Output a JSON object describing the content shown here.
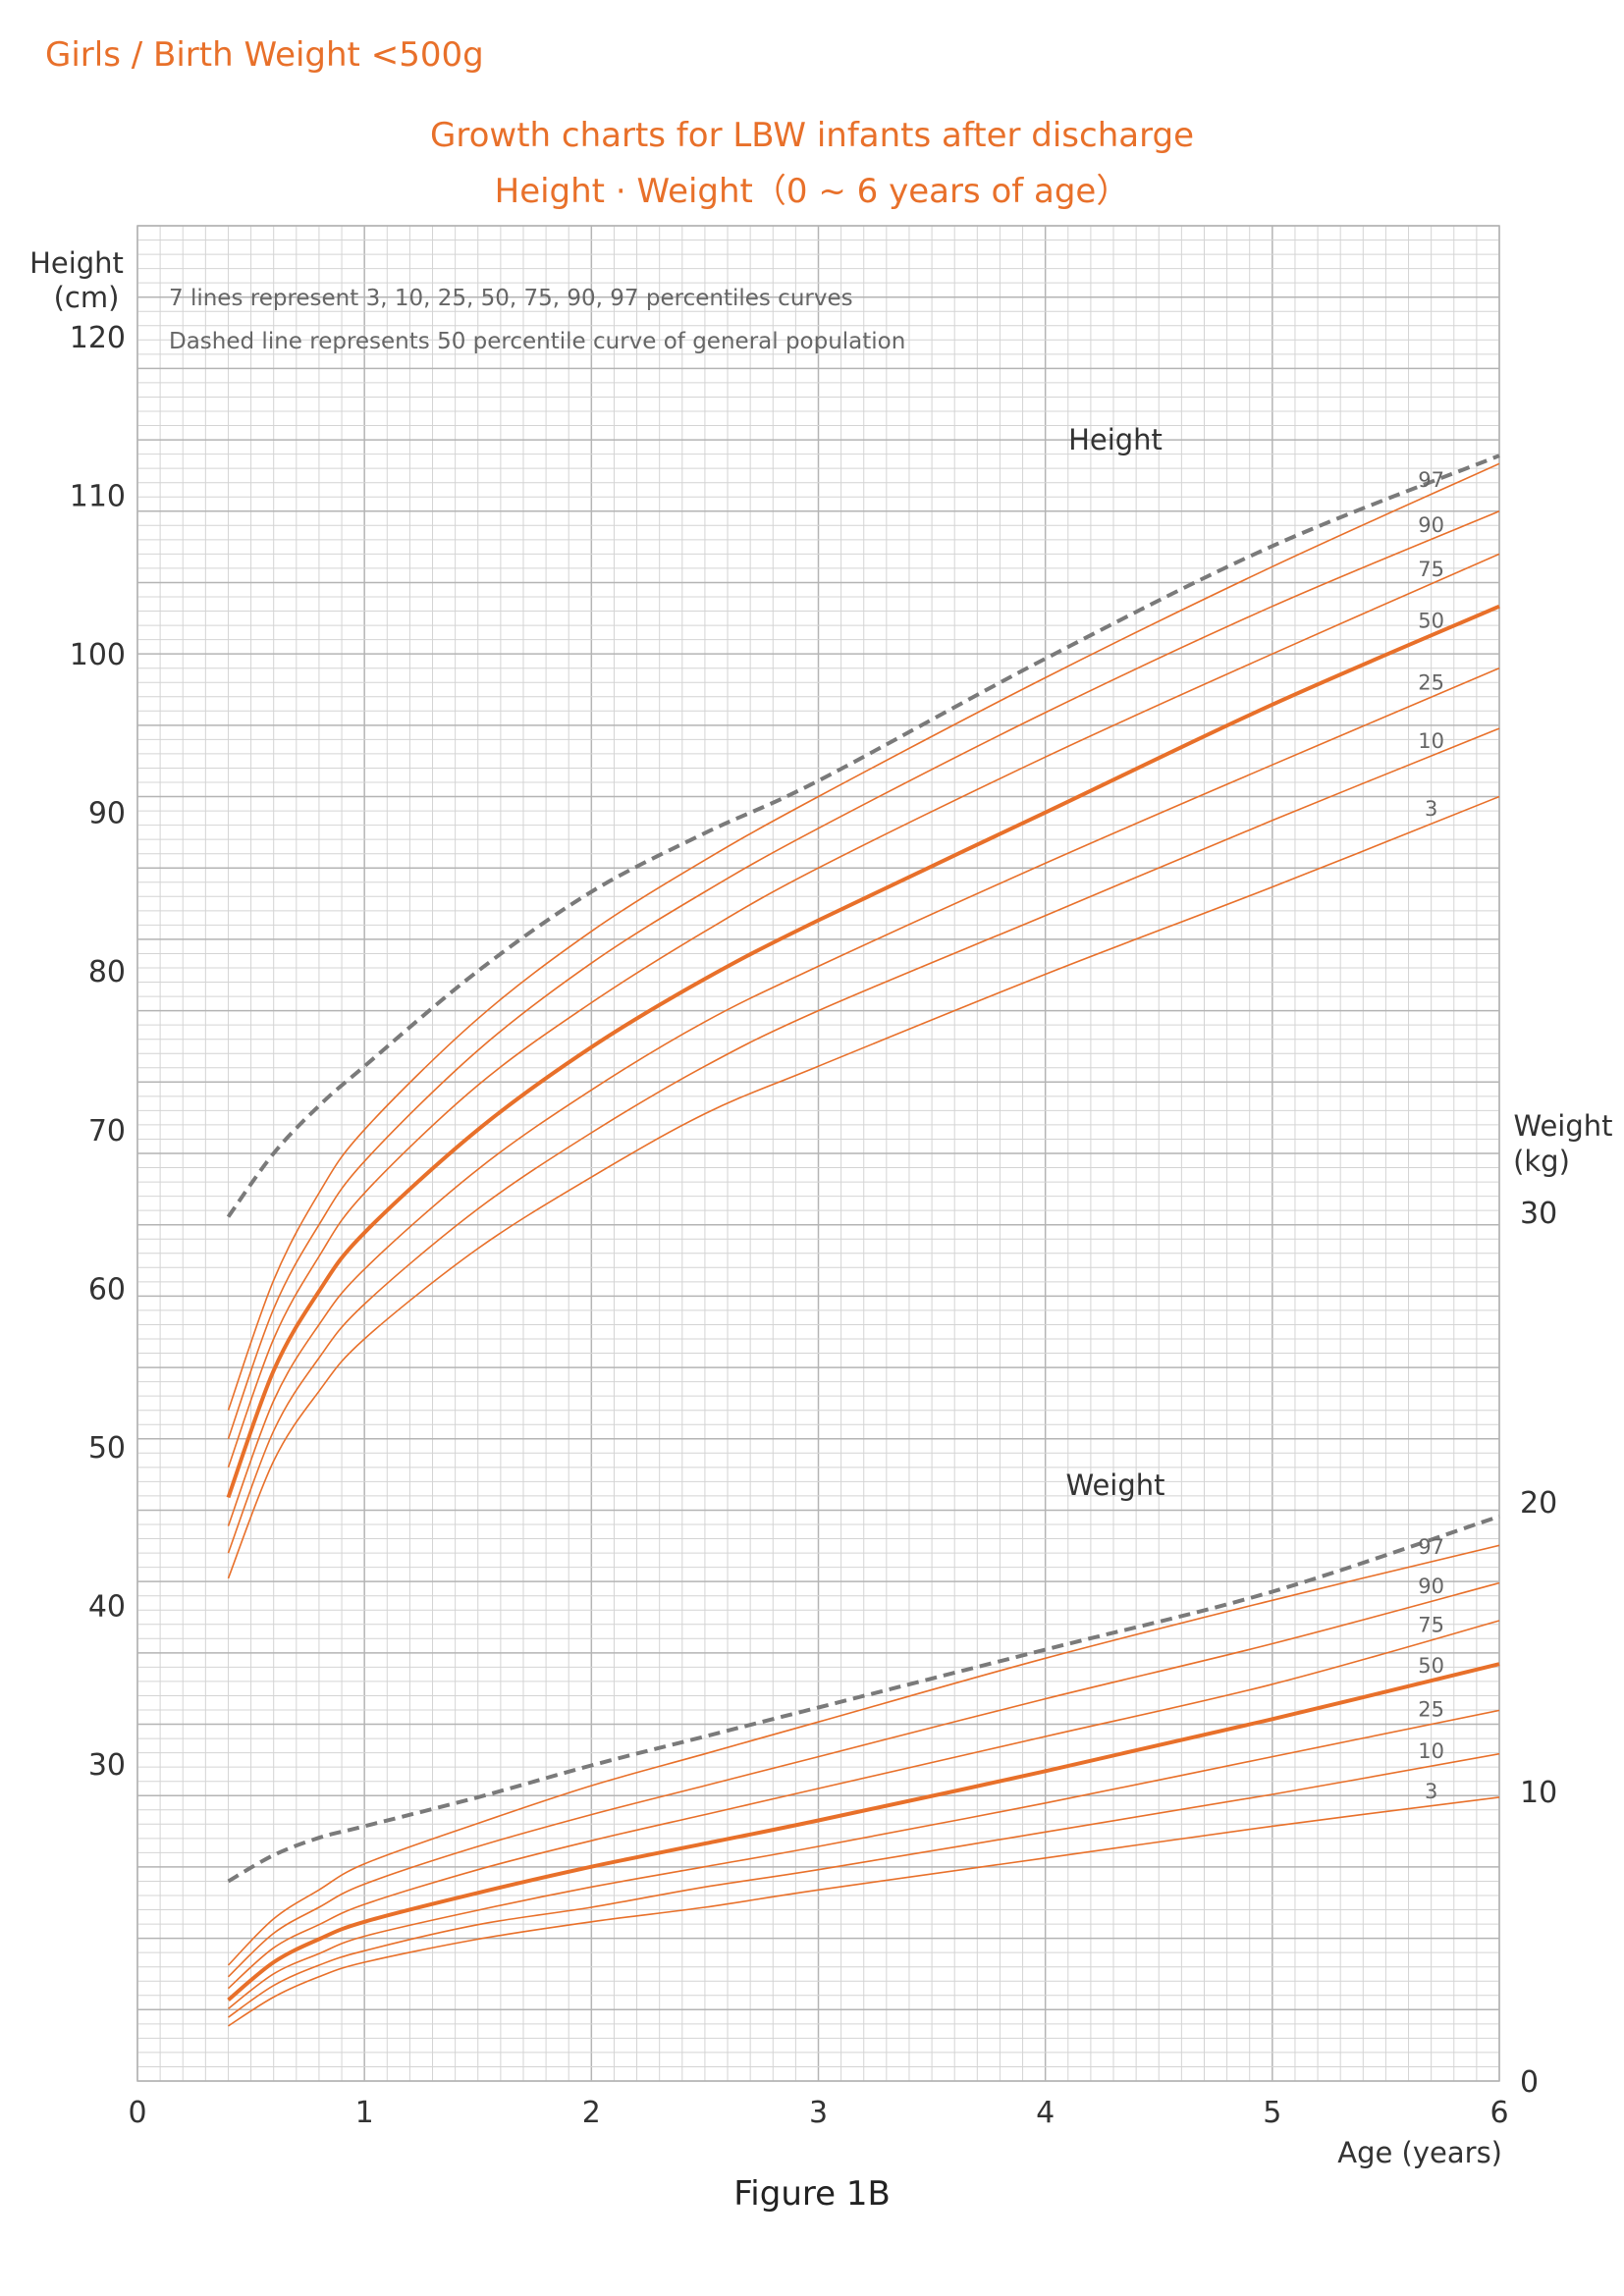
{
  "header": {
    "group_label": "Girls / Birth Weight <500g",
    "title_line1": "Growth charts for LBW infants after discharge",
    "title_line2": "Height · Weight（0 ~ 6 years of age）"
  },
  "caption": "Figure 1B",
  "chart_data": {
    "type": "line",
    "notes": [
      "7 lines represent 3, 10,  25,  50,  75,  90,  97 percentiles curves",
      "Dashed line represents 50 percentile curve of general population"
    ],
    "xlabel": "Age (years)",
    "xlim": [
      0,
      6
    ],
    "x_ticks": [
      0,
      1,
      2,
      3,
      4,
      5,
      6
    ],
    "height_axis": {
      "label_line1": "Height",
      "label_line2": "(cm)",
      "ylim": [
        10,
        127
      ],
      "ticks": [
        30,
        40,
        50,
        60,
        70,
        80,
        90,
        100,
        110,
        120
      ]
    },
    "weight_axis": {
      "label_line1": "Weight",
      "label_line2": "(kg)",
      "ylim": [
        0,
        30
      ],
      "ticks": [
        0,
        10,
        20,
        30
      ]
    },
    "colors": {
      "percentile": "#e8702a",
      "reference": "#7a7a7a",
      "grid_minor": "#d4d4d4",
      "grid_major": "#b4b4b4",
      "label_text": "#333333",
      "note_text": "#666666"
    },
    "height": {
      "panel_label": "Height",
      "x": [
        0.4,
        0.6,
        0.8,
        1.0,
        1.5,
        2.0,
        2.5,
        3.0,
        4.0,
        5.0,
        6.0
      ],
      "series": [
        {
          "name": "97",
          "values": [
            52.3,
            60.5,
            66.0,
            70.0,
            77.0,
            82.5,
            87.0,
            91.0,
            98.5,
            105.5,
            112.0
          ]
        },
        {
          "name": "90",
          "values": [
            50.5,
            58.7,
            64.0,
            68.0,
            75.0,
            80.5,
            85.0,
            89.0,
            96.3,
            103.0,
            109.0
          ]
        },
        {
          "name": "75",
          "values": [
            48.7,
            56.8,
            62.0,
            66.0,
            72.8,
            78.0,
            82.5,
            86.5,
            93.5,
            100.0,
            106.3
          ]
        },
        {
          "name": "50",
          "values": [
            46.8,
            54.8,
            59.8,
            63.5,
            70.0,
            75.2,
            79.5,
            83.2,
            90.0,
            96.8,
            103.0
          ]
        },
        {
          "name": "25",
          "values": [
            45.0,
            52.9,
            57.7,
            61.2,
            67.5,
            72.5,
            76.8,
            80.3,
            86.8,
            93.0,
            99.1
          ]
        },
        {
          "name": "10",
          "values": [
            43.3,
            51.0,
            55.6,
            59.0,
            65.0,
            69.8,
            74.0,
            77.5,
            83.5,
            89.5,
            95.3
          ]
        },
        {
          "name": "3",
          "values": [
            41.7,
            49.1,
            53.5,
            56.8,
            62.5,
            67.0,
            71.0,
            74.0,
            79.8,
            85.3,
            91.0
          ]
        }
      ],
      "reference": {
        "values": [
          64.5,
          68.5,
          71.5,
          74.0,
          80.0,
          85.0,
          88.7,
          92.0,
          99.7,
          106.8,
          112.5
        ]
      }
    },
    "weight": {
      "panel_label": "Weight",
      "x": [
        0.4,
        0.6,
        0.8,
        1.0,
        1.5,
        2.0,
        2.5,
        3.0,
        4.0,
        5.0,
        6.0
      ],
      "series": [
        {
          "name": "97",
          "values": [
            4.0,
            5.6,
            6.6,
            7.5,
            8.9,
            10.2,
            11.3,
            12.4,
            14.6,
            16.6,
            18.5
          ]
        },
        {
          "name": "90",
          "values": [
            3.6,
            5.1,
            6.0,
            6.8,
            8.1,
            9.2,
            10.2,
            11.2,
            13.2,
            15.1,
            17.2
          ]
        },
        {
          "name": "75",
          "values": [
            3.2,
            4.6,
            5.4,
            6.1,
            7.3,
            8.3,
            9.2,
            10.1,
            11.9,
            13.7,
            15.9
          ]
        },
        {
          "name": "50",
          "values": [
            2.8,
            4.1,
            4.9,
            5.5,
            6.5,
            7.4,
            8.2,
            9.0,
            10.7,
            12.5,
            14.4
          ]
        },
        {
          "name": "25",
          "values": [
            2.5,
            3.7,
            4.4,
            5.0,
            5.9,
            6.7,
            7.4,
            8.1,
            9.6,
            11.2,
            12.8
          ]
        },
        {
          "name": "10",
          "values": [
            2.2,
            3.3,
            4.0,
            4.5,
            5.4,
            6.0,
            6.7,
            7.3,
            8.6,
            9.9,
            11.3
          ]
        },
        {
          "name": "3",
          "values": [
            1.9,
            2.9,
            3.6,
            4.1,
            4.9,
            5.5,
            6.0,
            6.6,
            7.7,
            8.8,
            9.8
          ]
        }
      ],
      "reference": {
        "values": [
          6.9,
          7.8,
          8.4,
          8.8,
          9.8,
          10.9,
          11.9,
          12.9,
          14.9,
          16.9,
          19.5
        ]
      }
    }
  }
}
